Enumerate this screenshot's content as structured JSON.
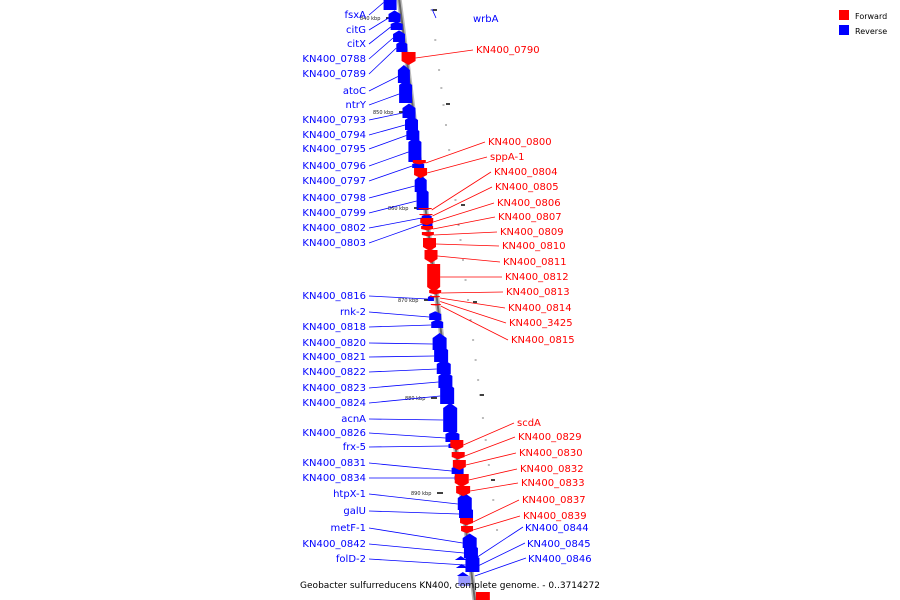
{
  "caption": "Geobacter sulfurreducens KN400, complete genome. - 0..3714272",
  "legend": [
    {
      "label": "Forward",
      "color": "#ff0000"
    },
    {
      "label": "Reverse",
      "color": "#0000ff"
    }
  ],
  "colors": {
    "forward": "#ff0000",
    "reverse": "#0000ff",
    "backbone": "#888888"
  },
  "tick_labels": [
    "840 kbp",
    "850 kbp",
    "860 kbp",
    "870 kbp",
    "880 kbp",
    "890 kbp"
  ],
  "reverse_genes": [
    "fsxA",
    "citG",
    "citX",
    "KN400_0788",
    "KN400_0789",
    "atoC",
    "ntrY",
    "KN400_0793",
    "KN400_0794",
    "KN400_0795",
    "KN400_0796",
    "KN400_0797",
    "KN400_0798",
    "KN400_0799",
    "KN400_0802",
    "KN400_0803",
    "KN400_0816",
    "rnk-2",
    "KN400_0818",
    "KN400_0820",
    "KN400_0821",
    "KN400_0822",
    "KN400_0823",
    "KN400_0824",
    "acnA",
    "KN400_0826",
    "frx-5",
    "KN400_0831",
    "KN400_0834",
    "htpX-1",
    "galU",
    "metF-1",
    "KN400_0842",
    "folD-2"
  ],
  "forward_genes": [
    "KN400_0790",
    "KN400_0800",
    "sppA-1",
    "KN400_0804",
    "KN400_0805",
    "KN400_0806",
    "KN400_0807",
    "KN400_0809",
    "KN400_0810",
    "KN400_0811",
    "KN400_0812",
    "KN400_0813",
    "KN400_0814",
    "KN400_3425",
    "KN400_0815",
    "scdA",
    "KN400_0829",
    "KN400_0830",
    "KN400_0832",
    "KN400_0833",
    "KN400_0837",
    "KN400_0839"
  ],
  "right_reverse_genes": [
    "wrbA",
    "KN400_0844",
    "KN400_0845",
    "KN400_0846"
  ]
}
